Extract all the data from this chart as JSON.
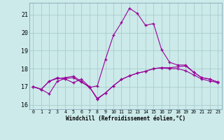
{
  "xlabel": "Windchill (Refroidissement éolien,°C)",
  "x": [
    0,
    1,
    2,
    3,
    4,
    5,
    6,
    7,
    8,
    9,
    10,
    11,
    12,
    13,
    14,
    15,
    16,
    17,
    18,
    19,
    20,
    21,
    22,
    23
  ],
  "line1": [
    17.0,
    16.85,
    16.6,
    17.3,
    17.45,
    17.5,
    17.25,
    17.0,
    16.35,
    16.65,
    17.05,
    17.4,
    17.6,
    17.75,
    17.85,
    18.0,
    18.05,
    18.05,
    18.1,
    18.15,
    17.8,
    17.5,
    17.42,
    17.25
  ],
  "line2": [
    17.0,
    16.85,
    17.3,
    17.45,
    17.5,
    17.58,
    17.3,
    16.95,
    17.05,
    18.5,
    19.85,
    20.55,
    21.35,
    21.05,
    20.4,
    20.5,
    19.05,
    18.35,
    18.2,
    18.2,
    17.8,
    17.5,
    17.42,
    17.25
  ],
  "line3": [
    17.0,
    16.85,
    17.3,
    17.5,
    17.42,
    17.22,
    17.42,
    17.0,
    16.3,
    16.65,
    17.05,
    17.4,
    17.6,
    17.75,
    17.85,
    18.0,
    18.05,
    18.0,
    18.0,
    17.88,
    17.65,
    17.42,
    17.32,
    17.22
  ],
  "line_color": "#990099",
  "bg_color": "#cceaea",
  "grid_color": "#aacccc",
  "ylim": [
    15.75,
    21.65
  ],
  "yticks": [
    16,
    17,
    18,
    19,
    20,
    21
  ],
  "xticks": [
    0,
    1,
    2,
    3,
    4,
    5,
    6,
    7,
    8,
    9,
    10,
    11,
    12,
    13,
    14,
    15,
    16,
    17,
    18,
    19,
    20,
    21,
    22,
    23
  ],
  "xtick_labels": [
    "0",
    "1",
    "2",
    "3",
    "4",
    "5",
    "6",
    "7",
    "8",
    "9",
    "10",
    "11",
    "12",
    "13",
    "14",
    "15",
    "16",
    "17",
    "18",
    "19",
    "20",
    "21",
    "22",
    "23"
  ]
}
